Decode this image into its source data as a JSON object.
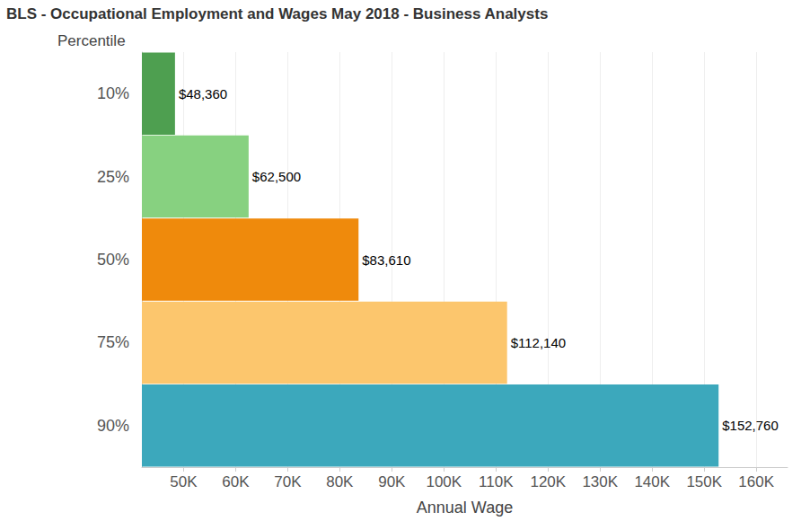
{
  "chart_data": {
    "type": "bar",
    "orientation": "horizontal",
    "title": "BLS - Occupational Employment and Wages May 2018 - Business Analysts",
    "y_label": "Percentile",
    "x_label": "Annual Wage",
    "categories": [
      "10%",
      "25%",
      "50%",
      "75%",
      "90%"
    ],
    "values": [
      48360,
      62500,
      83610,
      112140,
      152760
    ],
    "value_labels": [
      "$48,360",
      "$62,500",
      "$83,610",
      "$112,140",
      "$152,760"
    ],
    "colors": [
      "#4e9f50",
      "#87d180",
      "#ef8a0c",
      "#fcc66d",
      "#3ca8bc"
    ],
    "data_labels": true,
    "xlim": [
      42000,
      166000
    ],
    "xticks": [
      {
        "value": 50000,
        "label": "50K"
      },
      {
        "value": 60000,
        "label": "60K"
      },
      {
        "value": 70000,
        "label": "70K"
      },
      {
        "value": 80000,
        "label": "80K"
      },
      {
        "value": 90000,
        "label": "90K"
      },
      {
        "value": 100000,
        "label": "100K"
      },
      {
        "value": 110000,
        "label": "110K"
      },
      {
        "value": 120000,
        "label": "120K"
      },
      {
        "value": 130000,
        "label": "130K"
      },
      {
        "value": 140000,
        "label": "140K"
      },
      {
        "value": 150000,
        "label": "150K"
      },
      {
        "value": 160000,
        "label": "160K"
      }
    ],
    "grid": true
  }
}
